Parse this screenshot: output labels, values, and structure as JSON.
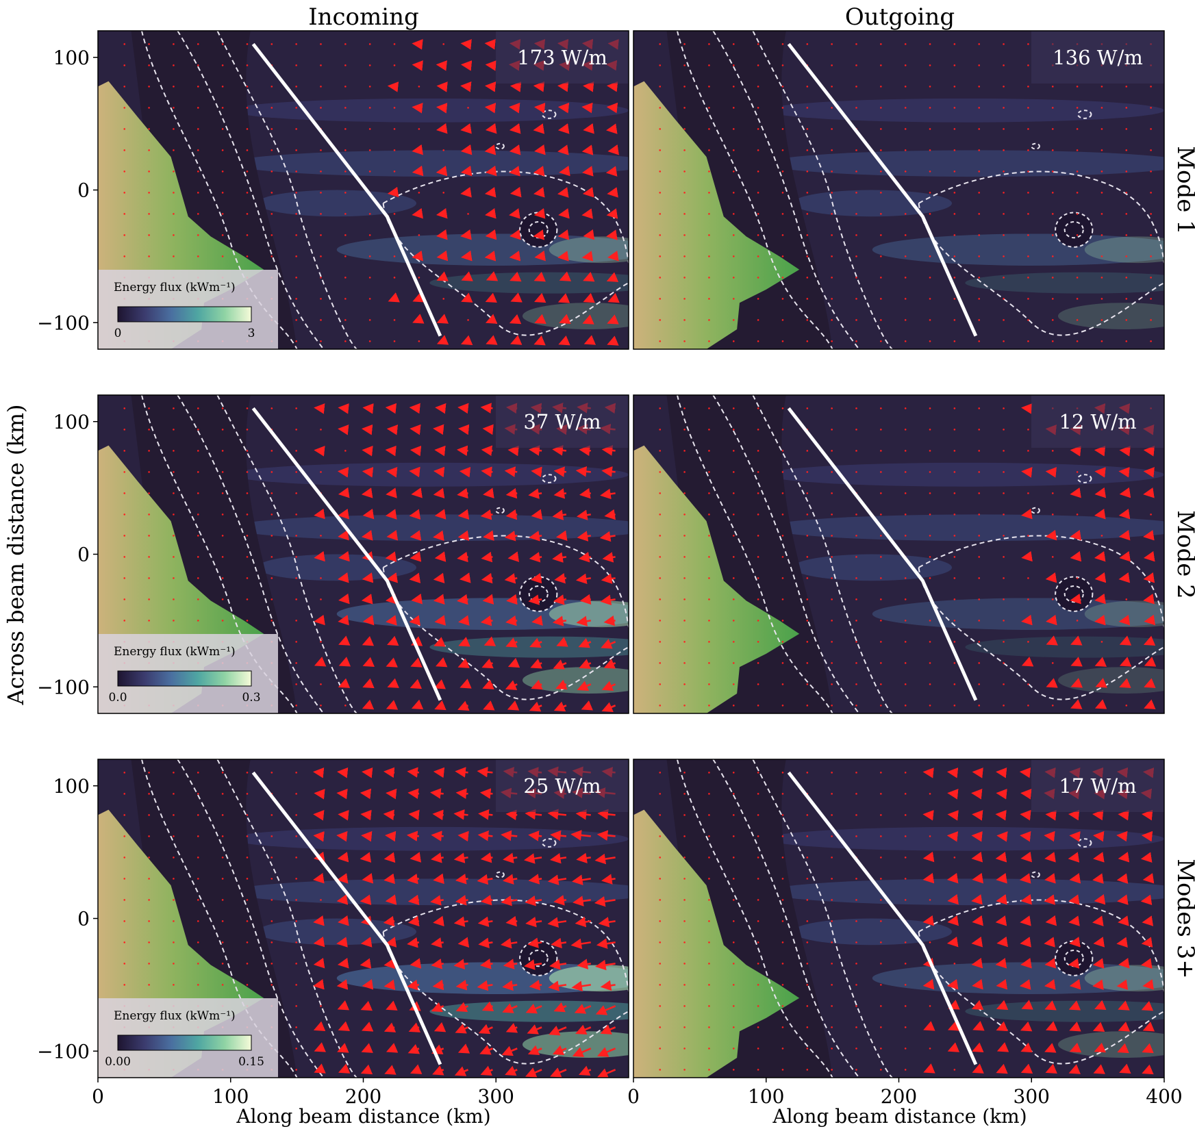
{
  "chart_data": {
    "type": "heatmap",
    "column_titles": [
      "Incoming",
      "Outgoing"
    ],
    "row_labels": [
      "Mode 1",
      "Mode 2",
      "Modes 3+"
    ],
    "xlabel": "Along beam distance (km)",
    "ylabel": "Across beam distance (km)",
    "xlim": [
      0,
      400
    ],
    "ylim": [
      -120,
      120
    ],
    "xticks": [
      0,
      100,
      200,
      300,
      400
    ],
    "yticks": [
      100,
      0,
      -100
    ],
    "colorbar_title": "Energy flux (kWm⁻¹)",
    "colormap": [
      "#1e1530",
      "#3b3b6e",
      "#4a6fa0",
      "#4fa6a2",
      "#8fd3a4",
      "#f6fbd9"
    ],
    "vector_color": "#ff2020",
    "section_line": [
      [
        117,
        110
      ],
      [
        218,
        -20
      ],
      [
        258,
        -110
      ]
    ],
    "panels": [
      {
        "row": 0,
        "col": 0,
        "total_flux": "173 W/m",
        "colorbar_ticks": [
          "0",
          "3"
        ],
        "intensity": 0.35,
        "arrow_scale": 0.25
      },
      {
        "row": 0,
        "col": 1,
        "total_flux": "136 W/m",
        "colorbar_ticks": null,
        "intensity": 0.3,
        "arrow_scale": 0.05
      },
      {
        "row": 1,
        "col": 0,
        "total_flux": "37 W/m",
        "colorbar_ticks": [
          "0.0",
          "0.3"
        ],
        "intensity": 0.55,
        "arrow_scale": 0.65
      },
      {
        "row": 1,
        "col": 1,
        "total_flux": "12 W/m",
        "colorbar_ticks": null,
        "intensity": 0.25,
        "arrow_scale": 0.15
      },
      {
        "row": 2,
        "col": 0,
        "total_flux": "25 W/m",
        "colorbar_ticks": [
          "0.00",
          "0.15"
        ],
        "intensity": 0.7,
        "arrow_scale": 1.0
      },
      {
        "row": 2,
        "col": 1,
        "total_flux": "17 W/m",
        "colorbar_ticks": null,
        "intensity": 0.35,
        "arrow_scale": 0.3
      }
    ]
  }
}
